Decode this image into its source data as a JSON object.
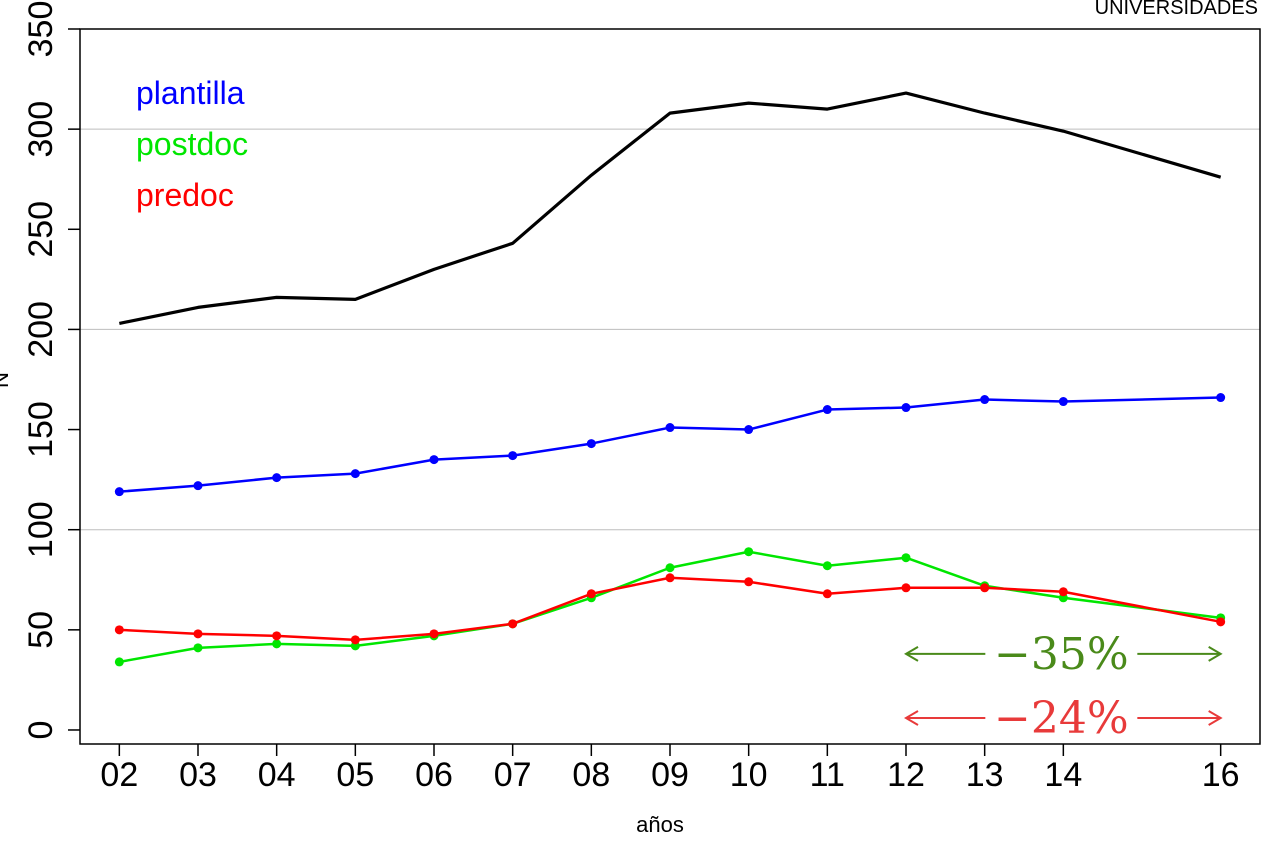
{
  "chart_data": {
    "type": "line",
    "title": "UNIVERSIDADES",
    "xlabel": "años",
    "ylabel": "N",
    "x": [
      "02",
      "03",
      "04",
      "05",
      "06",
      "07",
      "08",
      "09",
      "10",
      "11",
      "12",
      "13",
      "14",
      "16"
    ],
    "x_numeric": [
      2,
      3,
      4,
      5,
      6,
      7,
      8,
      9,
      10,
      11,
      12,
      13,
      14,
      16
    ],
    "xlim": [
      1.5,
      16.5
    ],
    "ylim": [
      -7,
      350
    ],
    "yticks": [
      0,
      50,
      100,
      150,
      200,
      250,
      300,
      350
    ],
    "gridlines_y": [
      100,
      200,
      300
    ],
    "series": [
      {
        "name": "",
        "color": "#000000",
        "markers": false,
        "values": [
          203,
          211,
          216,
          215,
          230,
          243,
          277,
          308,
          313,
          310,
          318,
          308,
          299,
          276
        ]
      },
      {
        "name": "plantilla",
        "color": "#0000ff",
        "markers": true,
        "values": [
          119,
          122,
          126,
          128,
          135,
          137,
          143,
          151,
          150,
          160,
          161,
          165,
          164,
          166
        ]
      },
      {
        "name": "postdoc",
        "color": "#00e600",
        "markers": true,
        "values": [
          34,
          41,
          43,
          42,
          47,
          53,
          66,
          81,
          89,
          82,
          86,
          72,
          66,
          56
        ]
      },
      {
        "name": "predoc",
        "color": "#ff0000",
        "markers": true,
        "values": [
          50,
          48,
          47,
          45,
          48,
          53,
          68,
          76,
          74,
          68,
          71,
          71,
          69,
          54
        ]
      }
    ],
    "legend_placement": "top-left",
    "annotations": [
      {
        "text": "−35%",
        "color": "#4a8a1a",
        "x_from": 12,
        "x_to": 16,
        "y": 38
      },
      {
        "text": "−24%",
        "color": "#e83a3a",
        "x_from": 12,
        "x_to": 16,
        "y": 6
      }
    ]
  }
}
